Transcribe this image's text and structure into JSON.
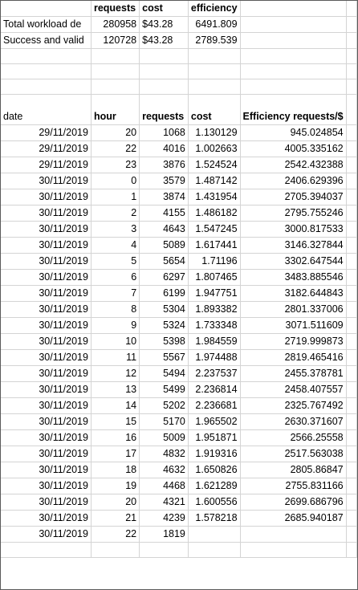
{
  "summary": {
    "headers": [
      "requests",
      "cost",
      "efficiency"
    ],
    "rows": [
      {
        "label": "Total workload de",
        "requests": "280958",
        "cost_symbol": "$",
        "cost": "43.28",
        "efficiency": "6491.809"
      },
      {
        "label": "Success and valid",
        "requests": "120728",
        "cost_symbol": "$",
        "cost": "43.28",
        "efficiency": "2789.539"
      }
    ]
  },
  "table": {
    "headers": {
      "date": "date",
      "hour": "hour",
      "requests": "requests",
      "cost": "cost",
      "efficiency": "Efficiency requests/$"
    },
    "rows": [
      {
        "date": "29/11/2019",
        "hour": "20",
        "requests": "1068",
        "cost": "1.130129",
        "efficiency": "945.024854"
      },
      {
        "date": "29/11/2019",
        "hour": "22",
        "requests": "4016",
        "cost": "1.002663",
        "efficiency": "4005.335162"
      },
      {
        "date": "29/11/2019",
        "hour": "23",
        "requests": "3876",
        "cost": "1.524524",
        "efficiency": "2542.432388"
      },
      {
        "date": "30/11/2019",
        "hour": "0",
        "requests": "3579",
        "cost": "1.487142",
        "efficiency": "2406.629396"
      },
      {
        "date": "30/11/2019",
        "hour": "1",
        "requests": "3874",
        "cost": "1.431954",
        "efficiency": "2705.394037"
      },
      {
        "date": "30/11/2019",
        "hour": "2",
        "requests": "4155",
        "cost": "1.486182",
        "efficiency": "2795.755246"
      },
      {
        "date": "30/11/2019",
        "hour": "3",
        "requests": "4643",
        "cost": "1.547245",
        "efficiency": "3000.817533"
      },
      {
        "date": "30/11/2019",
        "hour": "4",
        "requests": "5089",
        "cost": "1.617441",
        "efficiency": "3146.327844"
      },
      {
        "date": "30/11/2019",
        "hour": "5",
        "requests": "5654",
        "cost": "1.71196",
        "efficiency": "3302.647544"
      },
      {
        "date": "30/11/2019",
        "hour": "6",
        "requests": "6297",
        "cost": "1.807465",
        "efficiency": "3483.885546"
      },
      {
        "date": "30/11/2019",
        "hour": "7",
        "requests": "6199",
        "cost": "1.947751",
        "efficiency": "3182.644843"
      },
      {
        "date": "30/11/2019",
        "hour": "8",
        "requests": "5304",
        "cost": "1.893382",
        "efficiency": "2801.337006"
      },
      {
        "date": "30/11/2019",
        "hour": "9",
        "requests": "5324",
        "cost": "1.733348",
        "efficiency": "3071.511609"
      },
      {
        "date": "30/11/2019",
        "hour": "10",
        "requests": "5398",
        "cost": "1.984559",
        "efficiency": "2719.999873"
      },
      {
        "date": "30/11/2019",
        "hour": "11",
        "requests": "5567",
        "cost": "1.974488",
        "efficiency": "2819.465416"
      },
      {
        "date": "30/11/2019",
        "hour": "12",
        "requests": "5494",
        "cost": "2.237537",
        "efficiency": "2455.378781"
      },
      {
        "date": "30/11/2019",
        "hour": "13",
        "requests": "5499",
        "cost": "2.236814",
        "efficiency": "2458.407557"
      },
      {
        "date": "30/11/2019",
        "hour": "14",
        "requests": "5202",
        "cost": "2.236681",
        "efficiency": "2325.767492"
      },
      {
        "date": "30/11/2019",
        "hour": "15",
        "requests": "5170",
        "cost": "1.965502",
        "efficiency": "2630.371607"
      },
      {
        "date": "30/11/2019",
        "hour": "16",
        "requests": "5009",
        "cost": "1.951871",
        "efficiency": "2566.25558"
      },
      {
        "date": "30/11/2019",
        "hour": "17",
        "requests": "4832",
        "cost": "1.919316",
        "efficiency": "2517.563038"
      },
      {
        "date": "30/11/2019",
        "hour": "18",
        "requests": "4632",
        "cost": "1.650826",
        "efficiency": "2805.86847"
      },
      {
        "date": "30/11/2019",
        "hour": "19",
        "requests": "4468",
        "cost": "1.621289",
        "efficiency": "2755.831166"
      },
      {
        "date": "30/11/2019",
        "hour": "20",
        "requests": "4321",
        "cost": "1.600556",
        "efficiency": "2699.686796"
      },
      {
        "date": "30/11/2019",
        "hour": "21",
        "requests": "4239",
        "cost": "1.578218",
        "efficiency": "2685.940187"
      },
      {
        "date": "30/11/2019",
        "hour": "22",
        "requests": "1819",
        "cost": "",
        "efficiency": ""
      }
    ]
  }
}
